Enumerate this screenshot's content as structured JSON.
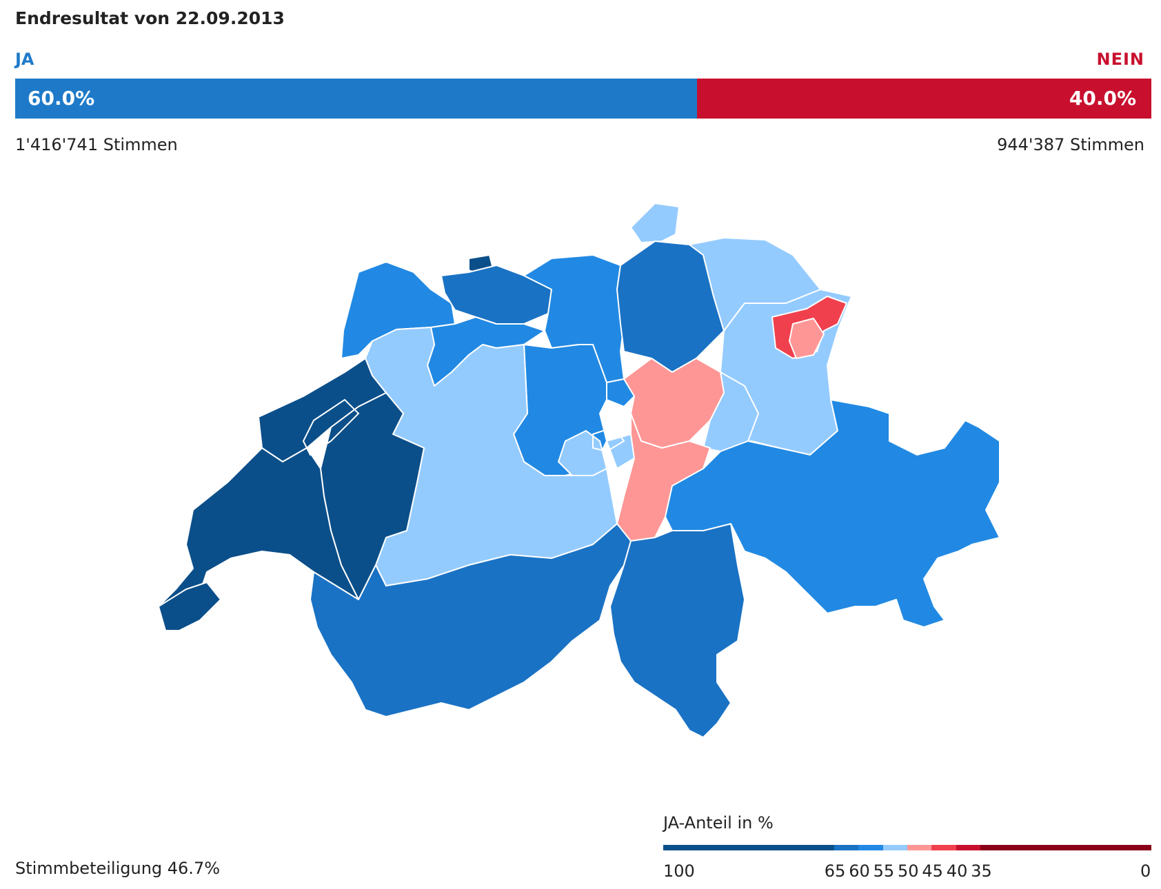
{
  "header": {
    "title": "Endresultat von 22.09.2013",
    "ja_label": "JA",
    "nein_label": "NEIN"
  },
  "result": {
    "ja_percent": "60.0%",
    "nein_percent": "40.0%",
    "ja_share": 60.0,
    "ja_votes": "1'416'741 Stimmen",
    "nein_votes": "944'387 Stimmen",
    "ja_color": "#1e7ac9",
    "nein_color": "#c8102e"
  },
  "footer": {
    "turnout": "Stimmbeteiligung 46.7%"
  },
  "legend": {
    "title": "JA-Anteil in %",
    "ticks": [
      "100",
      "65",
      "60",
      "55",
      "50",
      "45",
      "40",
      "35",
      "0"
    ],
    "colors": [
      "#0b4f8a",
      "#1a72c4",
      "#2189e3",
      "#94cbff",
      "#ff9696",
      "#f0404d",
      "#c8102e",
      "#8b0018"
    ]
  },
  "map": {
    "fill_colors": {
      "ja_65_100": "#0b4f8a",
      "ja_60_65": "#1a72c4",
      "ja_55_60": "#2189e3",
      "ja_50_55": "#94cbff",
      "ja_45_50": "#ff9696",
      "ja_40_45": "#f0404d"
    }
  }
}
